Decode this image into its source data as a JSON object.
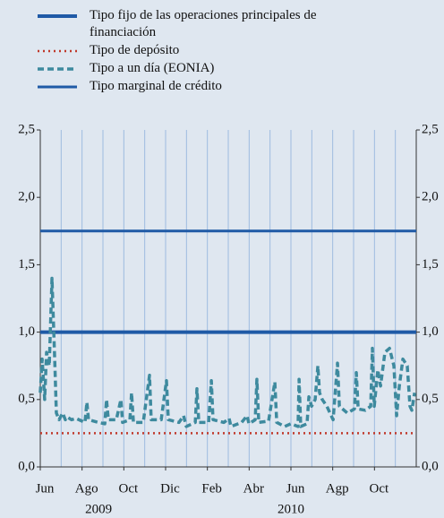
{
  "chart_data": {
    "type": "line",
    "xlim": [
      0,
      18
    ],
    "xticks": [
      {
        "value": 0,
        "label": "Jun"
      },
      {
        "value": 2,
        "label": "Ago"
      },
      {
        "value": 4,
        "label": "Oct"
      },
      {
        "value": 6,
        "label": "Dic"
      },
      {
        "value": 8,
        "label": "Feb"
      },
      {
        "value": 10,
        "label": "Abr"
      },
      {
        "value": 12,
        "label": "Jun"
      },
      {
        "value": 14,
        "label": "Agp"
      },
      {
        "value": 16,
        "label": "Oct"
      }
    ],
    "xgrid": [
      0,
      1,
      2,
      3,
      4,
      5,
      6,
      7,
      8,
      9,
      10,
      11,
      12,
      13,
      14,
      15,
      16,
      17,
      18
    ],
    "year_labels": [
      {
        "value": 2.79,
        "label": "2009"
      },
      {
        "value": 12.0,
        "label": "2010"
      }
    ],
    "ylim": [
      0,
      2.5
    ],
    "yticks": [
      {
        "value": 0,
        "label": "0,0"
      },
      {
        "value": 0.5,
        "label": "0,5"
      },
      {
        "value": 1.0,
        "label": "1,0"
      },
      {
        "value": 1.5,
        "label": "1,5"
      },
      {
        "value": 2.0,
        "label": "2,0"
      },
      {
        "value": 2.5,
        "label": "2,5"
      }
    ],
    "series": [
      {
        "name": "Tipo fijo de las operaciones principales de financiación",
        "color": "#1f5aa6",
        "style": "solid",
        "width": 4,
        "x": [
          0,
          18
        ],
        "values": [
          1.0,
          1.0
        ]
      },
      {
        "name": "Tipo de depósito",
        "color": "#c0392b",
        "style": "dotted",
        "width": 2.5,
        "x": [
          0,
          18
        ],
        "values": [
          0.25,
          0.25
        ]
      },
      {
        "name": "Tipo a un día (EONIA)",
        "color": "#3e8a9e",
        "style": "dashed",
        "width": 3.5,
        "x": [
          0,
          0.09,
          0.21,
          0.3,
          0.43,
          0.56,
          0.69,
          0.77,
          0.9,
          1.07,
          1.2,
          1.29,
          1.5,
          1.71,
          2.14,
          2.23,
          2.31,
          2.79,
          3.09,
          3.17,
          3.26,
          3.64,
          3.86,
          3.94,
          4.29,
          4.37,
          4.46,
          4.93,
          5.23,
          5.31,
          5.79,
          6.04,
          6.13,
          6.64,
          6.86,
          6.99,
          7.42,
          7.5,
          7.59,
          8.06,
          8.19,
          8.27,
          8.79,
          9.04,
          9.13,
          9.64,
          9.9,
          9.99,
          10.29,
          10.37,
          10.46,
          10.93,
          11.23,
          11.32,
          11.7,
          12.0,
          12.34,
          12.39,
          12.47,
          12.77,
          12.86,
          12.99,
          13.16,
          13.29,
          13.37,
          13.5,
          13.72,
          14.02,
          14.23,
          14.32,
          14.7,
          15.04,
          15.13,
          15.22,
          15.56,
          15.82,
          15.9,
          15.99,
          16.16,
          16.29,
          16.5,
          16.72,
          16.93,
          17.06,
          17.19,
          17.36,
          17.57,
          17.7,
          17.79,
          17.92
        ],
        "values": [
          0.55,
          0.8,
          0.5,
          0.85,
          0.75,
          1.4,
          0.8,
          0.4,
          0.35,
          0.4,
          0.35,
          0.37,
          0.35,
          0.36,
          0.33,
          0.48,
          0.35,
          0.33,
          0.32,
          0.5,
          0.35,
          0.35,
          0.5,
          0.33,
          0.35,
          0.55,
          0.33,
          0.33,
          0.68,
          0.35,
          0.35,
          0.64,
          0.35,
          0.33,
          0.38,
          0.3,
          0.33,
          0.58,
          0.33,
          0.33,
          0.64,
          0.35,
          0.33,
          0.36,
          0.3,
          0.33,
          0.38,
          0.32,
          0.35,
          0.65,
          0.33,
          0.34,
          0.63,
          0.33,
          0.3,
          0.32,
          0.3,
          0.65,
          0.3,
          0.32,
          0.52,
          0.45,
          0.5,
          0.75,
          0.55,
          0.5,
          0.45,
          0.35,
          0.77,
          0.45,
          0.4,
          0.43,
          0.7,
          0.43,
          0.42,
          0.45,
          0.88,
          0.45,
          0.72,
          0.6,
          0.85,
          0.88,
          0.75,
          0.38,
          0.6,
          0.8,
          0.75,
          0.45,
          0.42,
          0.55
        ]
      },
      {
        "name": "Tipo marginal de crédito",
        "color": "#1f5aa6",
        "style": "solid",
        "width": 3,
        "x": [
          0,
          18
        ],
        "values": [
          1.75,
          1.75
        ]
      }
    ]
  }
}
